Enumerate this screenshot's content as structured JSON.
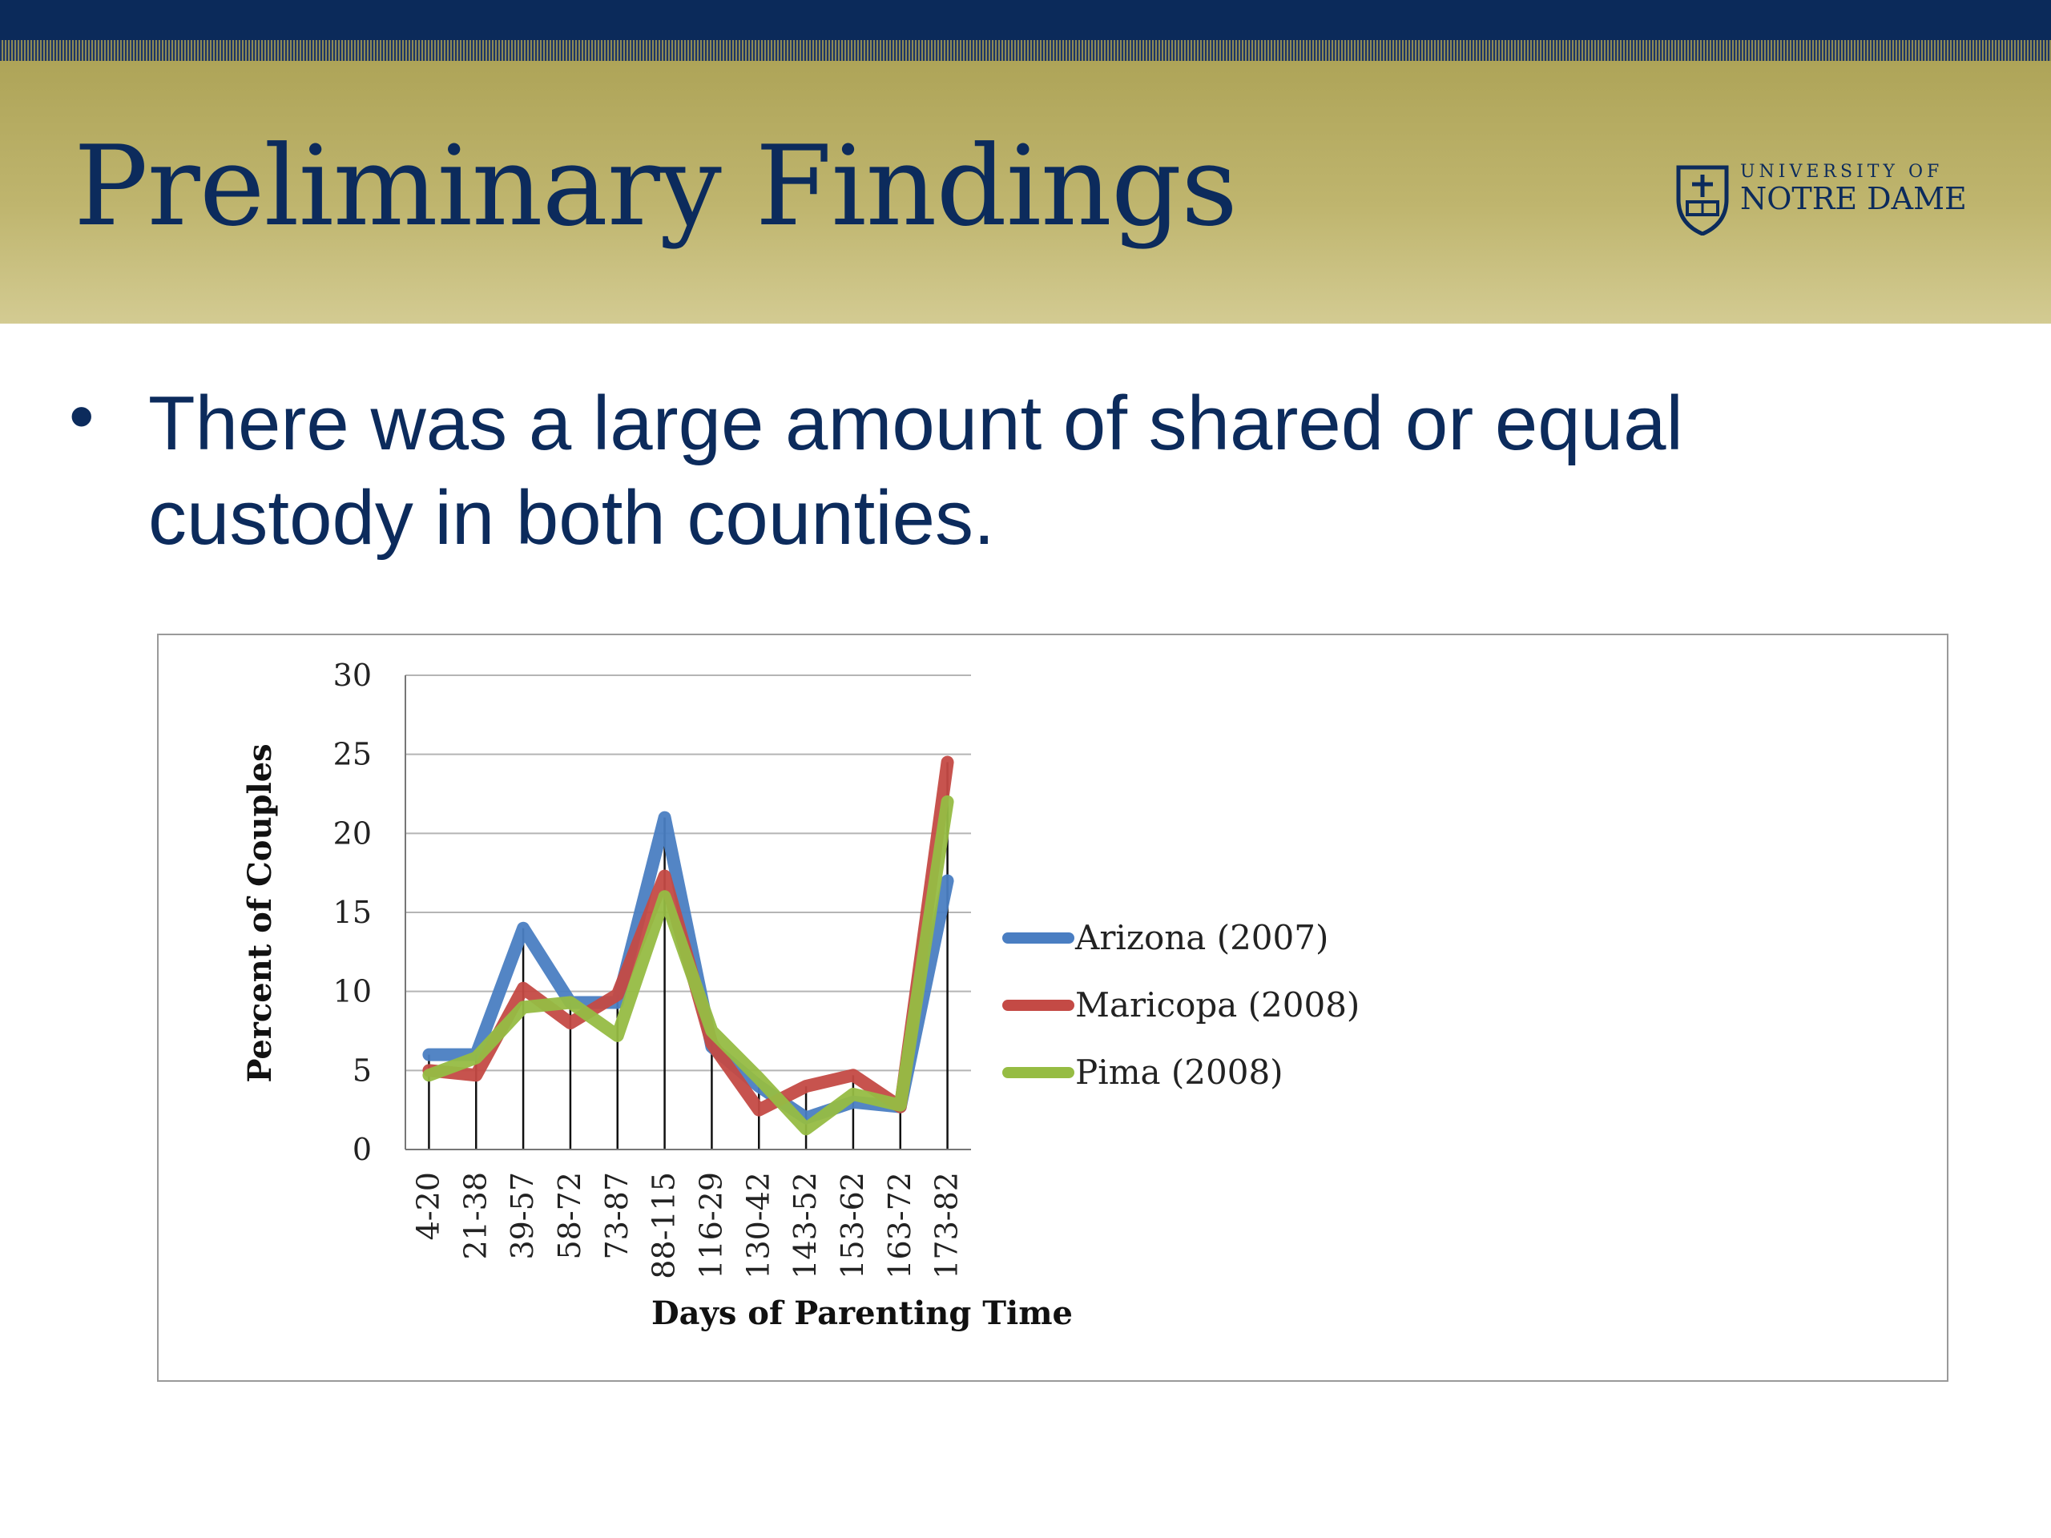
{
  "slide": {
    "title": "Preliminary Findings",
    "logo": {
      "line1": "UNIVERSITY OF",
      "line2": "NOTRE DAME"
    },
    "bullet": "There was a large amount of shared or equal custody in both counties."
  },
  "colors": {
    "navy": "#0c2b5c",
    "gold": "#bfb56e",
    "arizona": "#4a7ec2",
    "maricopa": "#c44a45",
    "pima": "#96bc43"
  },
  "chart_data": {
    "type": "line",
    "xlabel": "Days of Parenting Time",
    "ylabel": "Percent of Couples",
    "ylim": [
      0,
      30
    ],
    "yticks": [
      0,
      5,
      10,
      15,
      20,
      25,
      30
    ],
    "grid": true,
    "legend": "right",
    "categories": [
      "4-20",
      "21-38",
      "39-57",
      "58-72",
      "73-87",
      "88-115",
      "116-29",
      "130-42",
      "143-52",
      "153-62",
      "163-72",
      "173-82"
    ],
    "series": [
      {
        "name": "Arizona (2007)",
        "color": "#4a7ec2",
        "values": [
          6,
          6,
          14,
          9.3,
          9.3,
          21,
          6.5,
          4,
          2,
          3,
          2.7,
          17
        ]
      },
      {
        "name": "Maricopa (2008)",
        "color": "#c44a45",
        "values": [
          5,
          4.7,
          10.2,
          8,
          9.8,
          17.3,
          6.7,
          2.5,
          4,
          4.7,
          2.7,
          24.5
        ]
      },
      {
        "name": "Pima (2008)",
        "color": "#96bc43",
        "values": [
          4.7,
          5.8,
          9,
          9.3,
          7.2,
          16,
          7.5,
          4.5,
          1.3,
          3.5,
          2.8,
          22
        ]
      }
    ]
  }
}
